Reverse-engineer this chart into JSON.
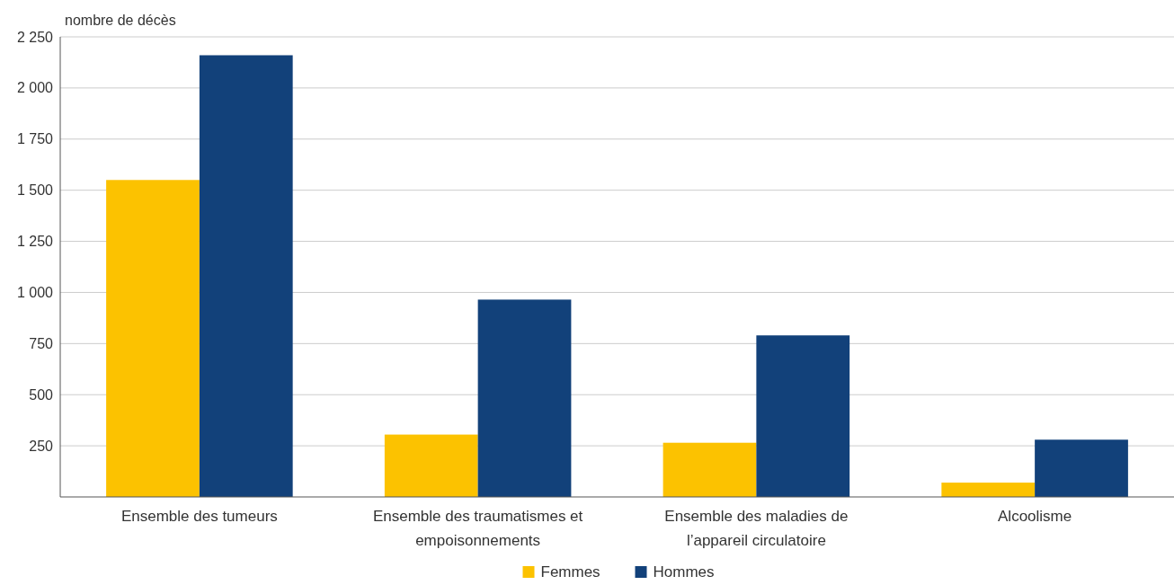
{
  "chart_data": {
    "type": "bar",
    "ylabel": "nombre de décès",
    "categories": [
      "Ensemble des tumeurs",
      "Ensemble des traumatismes et empoisonnements",
      "Ensemble des maladies de l’appareil circulatoire",
      "Alcoolisme"
    ],
    "series": [
      {
        "name": "Femmes",
        "color": "#fcc200",
        "values": [
          1550,
          305,
          265,
          70
        ]
      },
      {
        "name": "Hommes",
        "color": "#12417a",
        "values": [
          2160,
          965,
          790,
          280
        ]
      }
    ],
    "ylim": [
      0,
      2250
    ],
    "yticks": [
      {
        "value": 250,
        "label": "250"
      },
      {
        "value": 500,
        "label": "500"
      },
      {
        "value": 750,
        "label": "750"
      },
      {
        "value": 1000,
        "label": "1 000"
      },
      {
        "value": 1250,
        "label": "1 250"
      },
      {
        "value": 1500,
        "label": "1 500"
      },
      {
        "value": 1750,
        "label": "1 750"
      },
      {
        "value": 2000,
        "label": "2 000"
      },
      {
        "value": 2250,
        "label": "2 250"
      }
    ],
    "grid": "y",
    "legend": "bottom"
  }
}
